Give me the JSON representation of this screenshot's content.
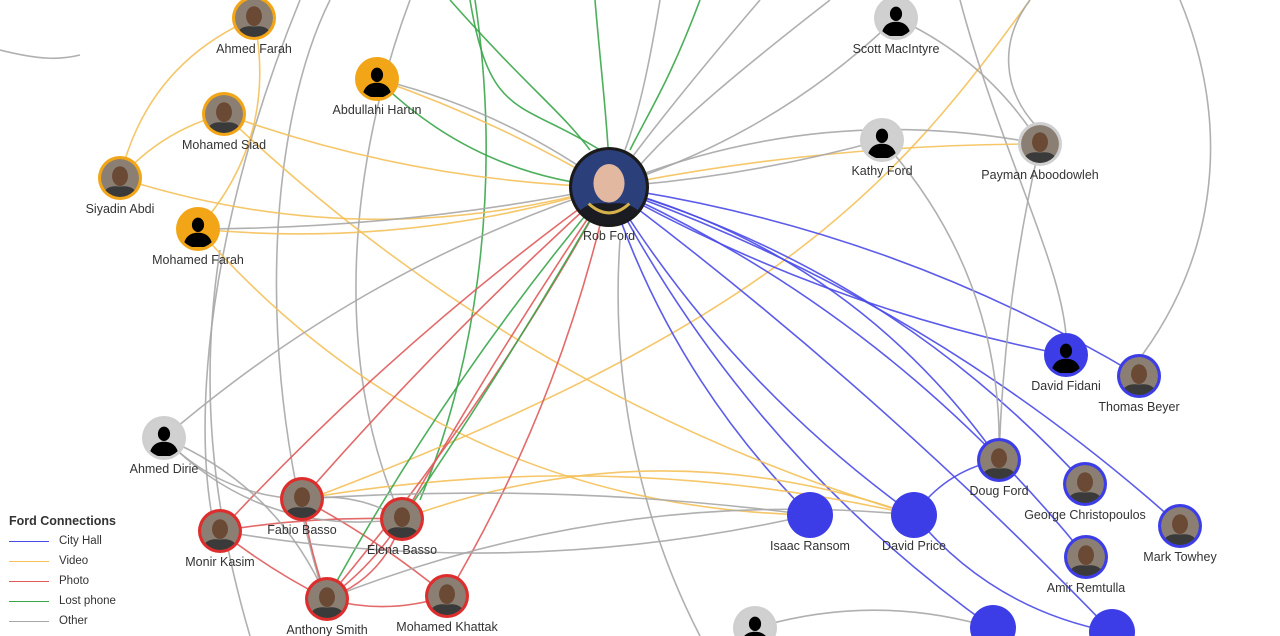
{
  "colors": {
    "city_hall": "#4a4ae8",
    "video": "#f4c15a",
    "photo": "#e05a5a",
    "lost_phone": "#3aa64a",
    "other": "#a7a7a7",
    "ring_gold": "#f2a516",
    "ring_red": "#dd2d2d",
    "ring_blue": "#3d3de8",
    "ring_gray": "#cfcfcf",
    "ring_dark": "#1a1a1a"
  },
  "legend": {
    "title": "Ford Connections",
    "items": [
      {
        "label": "City Hall",
        "color": "#4a4ae8"
      },
      {
        "label": "Video",
        "color": "#f4c15a"
      },
      {
        "label": "Photo",
        "color": "#e05a5a"
      },
      {
        "label": "Lost phone",
        "color": "#3aa64a"
      },
      {
        "label": "Other",
        "color": "#a7a7a7"
      }
    ]
  },
  "nodes": [
    {
      "id": "rob-ford",
      "label": "Rob Ford",
      "group": "center",
      "photo": true
    },
    {
      "id": "ahmed-farah",
      "label": "Ahmed Farah",
      "group": "video",
      "photo": true
    },
    {
      "id": "abdullahi-harun",
      "label": "Abdullahi Harun",
      "group": "video",
      "photo": false
    },
    {
      "id": "mohamed-siad",
      "label": "Mohamed Siad",
      "group": "video",
      "photo": true
    },
    {
      "id": "siyadin-abdi",
      "label": "Siyadin Abdi",
      "group": "video",
      "photo": true
    },
    {
      "id": "mohamed-farah",
      "label": "Mohamed Farah",
      "group": "video",
      "photo": false
    },
    {
      "id": "scott-macintyre",
      "label": "Scott MacIntyre",
      "group": "other",
      "photo": false
    },
    {
      "id": "kathy-ford",
      "label": "Kathy Ford",
      "group": "other",
      "photo": false
    },
    {
      "id": "payman-aboodowleh",
      "label": "Payman Aboodowleh",
      "group": "other",
      "photo": true
    },
    {
      "id": "ahmed-dirie",
      "label": "Ahmed Dirie",
      "group": "other",
      "photo": false
    },
    {
      "id": "fabio-basso",
      "label": "Fabio Basso",
      "group": "photo",
      "photo": true
    },
    {
      "id": "elena-basso",
      "label": "Elena Basso",
      "group": "photo",
      "photo": true
    },
    {
      "id": "monir-kasim",
      "label": "Monir Kasim",
      "group": "photo",
      "photo": true
    },
    {
      "id": "anthony-smith",
      "label": "Anthony Smith",
      "group": "photo",
      "photo": true
    },
    {
      "id": "mohamed-khattak",
      "label": "Mohamed Khattak",
      "group": "photo",
      "photo": true
    },
    {
      "id": "david-fidani",
      "label": "David Fidani",
      "group": "cityhall",
      "photo": false
    },
    {
      "id": "thomas-beyer",
      "label": "Thomas Beyer",
      "group": "cityhall",
      "photo": true
    },
    {
      "id": "doug-ford",
      "label": "Doug Ford",
      "group": "cityhall",
      "photo": true
    },
    {
      "id": "george-christopoulos",
      "label": "George Christopoulos",
      "group": "cityhall",
      "photo": true
    },
    {
      "id": "mark-towhey",
      "label": "Mark Towhey",
      "group": "cityhall",
      "photo": true
    },
    {
      "id": "amir-remtulla",
      "label": "Amir Remtulla",
      "group": "cityhall",
      "photo": true
    },
    {
      "id": "isaac-ransom",
      "label": "Isaac Ransom",
      "group": "cityhall",
      "photo": false,
      "solid": true
    },
    {
      "id": "david-price",
      "label": "David Price",
      "group": "cityhall",
      "photo": false,
      "solid": true
    },
    {
      "id": "bottom-gray",
      "label": "",
      "group": "other",
      "photo": false
    },
    {
      "id": "bottom-blue-1",
      "label": "",
      "group": "cityhall",
      "photo": false,
      "solid": true
    },
    {
      "id": "bottom-blue-2",
      "label": "",
      "group": "cityhall",
      "photo": false,
      "solid": true
    }
  ]
}
